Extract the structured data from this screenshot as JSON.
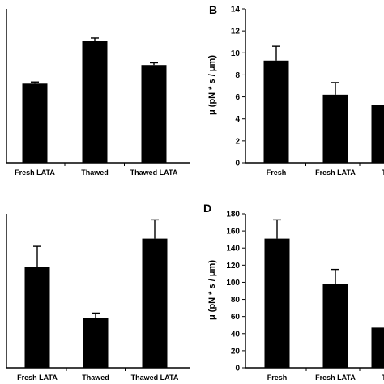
{
  "chart_data": [
    {
      "panel": "A",
      "type": "bar",
      "panel_label": "",
      "ylabel": "",
      "categories": [
        "Fresh LATA",
        "Thawed",
        "Thawed LATA"
      ],
      "values": [
        7.2,
        11.1,
        8.9
      ],
      "errors": [
        0.15,
        0.25,
        0.2
      ],
      "ylim": [
        0,
        14
      ],
      "yticks": [],
      "partial_left": true
    },
    {
      "panel": "B",
      "type": "bar",
      "panel_label": "B",
      "ylabel": "μ (pN * s / μm)",
      "categories": [
        "Fresh",
        "Fresh LATA",
        "T"
      ],
      "values": [
        9.3,
        6.2,
        5.3
      ],
      "errors": [
        1.3,
        1.1,
        0
      ],
      "ylim": [
        0,
        14
      ],
      "yticks": [
        0,
        2,
        4,
        6,
        8,
        10,
        12,
        14
      ],
      "partial_right": true
    },
    {
      "panel": "C",
      "type": "bar",
      "panel_label": "",
      "ylabel": "",
      "categories": [
        "Fresh LATA",
        "Thawed",
        "Thawed LATA"
      ],
      "values": [
        118,
        58,
        151
      ],
      "errors": [
        24,
        6,
        22
      ],
      "ylim": [
        0,
        180
      ],
      "yticks": [],
      "partial_left": true
    },
    {
      "panel": "D",
      "type": "bar",
      "panel_label": "D",
      "ylabel": "μ (pN * s / μm)",
      "categories": [
        "Fresh",
        "Fresh LATA",
        "T"
      ],
      "values": [
        151,
        98,
        47
      ],
      "errors": [
        22,
        17,
        0
      ],
      "ylim": [
        0,
        180
      ],
      "yticks": [
        0,
        20,
        40,
        60,
        80,
        100,
        120,
        140,
        160,
        180
      ],
      "partial_right": true
    }
  ]
}
